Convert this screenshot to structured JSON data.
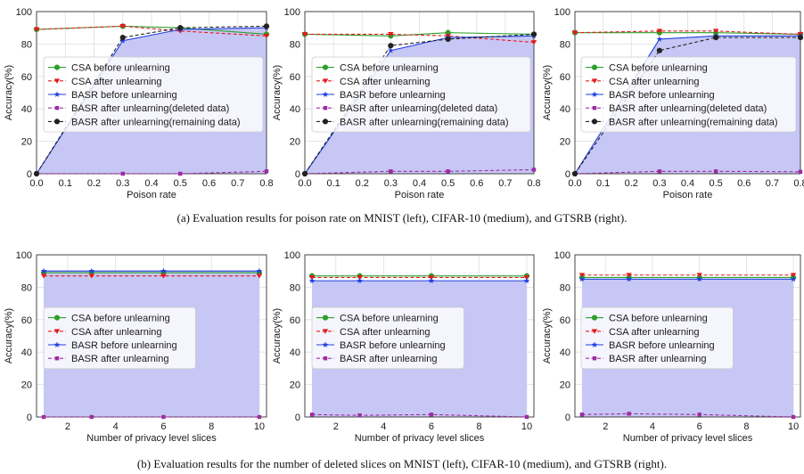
{
  "chart_data": [
    {
      "id": "a1",
      "type": "line",
      "xlabel": "Poison rate",
      "ylabel": "Accuracy(%)",
      "xlim": [
        0.0,
        0.8
      ],
      "ylim": [
        0,
        100
      ],
      "xticks": [
        "0.0",
        "0.1",
        "0.2",
        "0.3",
        "0.4",
        "0.5",
        "0.6",
        "0.7",
        "0.8"
      ],
      "yticks": [
        "0",
        "20",
        "40",
        "60",
        "80",
        "100"
      ],
      "fill_series": "BASR before unlearning",
      "fill_color": "#c7c7f5",
      "legend_position": "center-left",
      "series": [
        {
          "name": "CSA before unlearning",
          "color": "#2ca02c",
          "dash": "solid",
          "marker": "circle",
          "x": [
            0.0,
            0.3,
            0.5,
            0.8
          ],
          "y": [
            89,
            91,
            90,
            86
          ]
        },
        {
          "name": "CSA after unlearning",
          "color": "#e41a1c",
          "dash": "dashed",
          "marker": "triangle-down",
          "x": [
            0.0,
            0.3,
            0.5,
            0.8
          ],
          "y": [
            89,
            91,
            88,
            85
          ]
        },
        {
          "name": "BASR before unlearning",
          "color": "#1f3fe0",
          "dash": "solid",
          "marker": "star",
          "x": [
            0.0,
            0.3,
            0.5,
            0.8
          ],
          "y": [
            0,
            82,
            89,
            90
          ]
        },
        {
          "name": "BASR after unlearning(deleted data)",
          "color": "#9c2ea0",
          "dash": "dashed",
          "marker": "square",
          "x": [
            0.0,
            0.3,
            0.5,
            0.8
          ],
          "y": [
            0,
            0,
            0,
            1.5
          ]
        },
        {
          "name": "BASR after unlearning(remaining data)",
          "color": "#222222",
          "dash": "dashed",
          "marker": "circle",
          "x": [
            0.0,
            0.3,
            0.5,
            0.8
          ],
          "y": [
            0,
            84,
            90,
            91
          ]
        }
      ]
    },
    {
      "id": "a2",
      "type": "line",
      "xlabel": "Poison rate",
      "ylabel": "Accuracy(%)",
      "xlim": [
        0.0,
        0.8
      ],
      "ylim": [
        0,
        100
      ],
      "xticks": [
        "0.0",
        "0.1",
        "0.2",
        "0.3",
        "0.4",
        "0.5",
        "0.6",
        "0.7",
        "0.8"
      ],
      "yticks": [
        "0",
        "20",
        "40",
        "60",
        "80",
        "100"
      ],
      "fill_series": "BASR before unlearning",
      "fill_color": "#c7c7f5",
      "legend_position": "center-left",
      "series": [
        {
          "name": "CSA before unlearning",
          "color": "#2ca02c",
          "dash": "solid",
          "marker": "circle",
          "x": [
            0.0,
            0.3,
            0.5,
            0.8
          ],
          "y": [
            86,
            85,
            87,
            86
          ]
        },
        {
          "name": "CSA after unlearning",
          "color": "#e41a1c",
          "dash": "dashed",
          "marker": "triangle-down",
          "x": [
            0.0,
            0.3,
            0.5,
            0.8
          ],
          "y": [
            86,
            86,
            85,
            81
          ]
        },
        {
          "name": "BASR before unlearning",
          "color": "#1f3fe0",
          "dash": "solid",
          "marker": "star",
          "x": [
            0.0,
            0.3,
            0.5,
            0.8
          ],
          "y": [
            0,
            76,
            84,
            85
          ]
        },
        {
          "name": "BASR after unlearning(deleted data)",
          "color": "#9c2ea0",
          "dash": "dashed",
          "marker": "square",
          "x": [
            0.0,
            0.3,
            0.5,
            0.8
          ],
          "y": [
            0,
            1.5,
            1.5,
            2.5
          ]
        },
        {
          "name": "BASR after unlearning(remaining data)",
          "color": "#222222",
          "dash": "dashed",
          "marker": "circle",
          "x": [
            0.0,
            0.3,
            0.5,
            0.8
          ],
          "y": [
            0,
            79,
            83,
            86
          ]
        }
      ]
    },
    {
      "id": "a3",
      "type": "line",
      "xlabel": "Poison rate",
      "ylabel": "Accuracy(%)",
      "xlim": [
        0.0,
        0.8
      ],
      "ylim": [
        0,
        100
      ],
      "xticks": [
        "0.0",
        "0.1",
        "0.2",
        "0.3",
        "0.4",
        "0.5",
        "0.6",
        "0.7",
        "0.8"
      ],
      "yticks": [
        "0",
        "20",
        "40",
        "60",
        "80",
        "100"
      ],
      "fill_series": "BASR before unlearning",
      "fill_color": "#c7c7f5",
      "legend_position": "center-left",
      "series": [
        {
          "name": "CSA before unlearning",
          "color": "#2ca02c",
          "dash": "solid",
          "marker": "circle",
          "x": [
            0.0,
            0.3,
            0.5,
            0.8
          ],
          "y": [
            87,
            87,
            87,
            86
          ]
        },
        {
          "name": "CSA after unlearning",
          "color": "#e41a1c",
          "dash": "dashed",
          "marker": "triangle-down",
          "x": [
            0.0,
            0.3,
            0.5,
            0.8
          ],
          "y": [
            87,
            88,
            88,
            86
          ]
        },
        {
          "name": "BASR before unlearning",
          "color": "#1f3fe0",
          "dash": "solid",
          "marker": "star",
          "x": [
            0.0,
            0.3,
            0.5,
            0.8
          ],
          "y": [
            0,
            83,
            85,
            85
          ]
        },
        {
          "name": "BASR after unlearning(deleted data)",
          "color": "#9c2ea0",
          "dash": "dashed",
          "marker": "square",
          "x": [
            0.0,
            0.3,
            0.5,
            0.8
          ],
          "y": [
            0,
            1.5,
            1.5,
            1.2
          ]
        },
        {
          "name": "BASR after unlearning(remaining data)",
          "color": "#222222",
          "dash": "dashed",
          "marker": "circle",
          "x": [
            0.0,
            0.3,
            0.5,
            0.8
          ],
          "y": [
            0,
            76,
            84,
            84
          ]
        }
      ]
    },
    {
      "id": "b1",
      "type": "line",
      "xlabel": "Number of privacy level slices",
      "ylabel": "Accuracy(%)",
      "xlim": [
        0.7,
        10.3
      ],
      "ylim": [
        0,
        100
      ],
      "xticks": [
        "2",
        "4",
        "6",
        "8",
        "10"
      ],
      "yticks": [
        "0",
        "20",
        "40",
        "60",
        "80",
        "100"
      ],
      "fill_series": "BASR before unlearning",
      "fill_color": "#c7c7f5",
      "legend_position": "center-left",
      "series": [
        {
          "name": "CSA before unlearning",
          "color": "#2ca02c",
          "dash": "solid",
          "marker": "circle",
          "x": [
            1,
            3,
            6,
            10
          ],
          "y": [
            89,
            89,
            89,
            89
          ]
        },
        {
          "name": "CSA after unlearning",
          "color": "#e41a1c",
          "dash": "dashed",
          "marker": "triangle-down",
          "x": [
            1,
            3,
            6,
            10
          ],
          "y": [
            87,
            87,
            87,
            87
          ]
        },
        {
          "name": "BASR before unlearning",
          "color": "#1f3fe0",
          "dash": "solid",
          "marker": "star",
          "x": [
            1,
            3,
            6,
            10
          ],
          "y": [
            90,
            90,
            90,
            90
          ]
        },
        {
          "name": "BASR after unlearning",
          "color": "#9c2ea0",
          "dash": "dashed",
          "marker": "square",
          "x": [
            1,
            3,
            6,
            10
          ],
          "y": [
            0,
            0,
            0,
            0
          ]
        }
      ]
    },
    {
      "id": "b2",
      "type": "line",
      "xlabel": "Number of privacy level slices",
      "ylabel": "Accuracy(%)",
      "xlim": [
        0.7,
        10.3
      ],
      "ylim": [
        0,
        100
      ],
      "xticks": [
        "2",
        "4",
        "6",
        "8",
        "10"
      ],
      "yticks": [
        "0",
        "20",
        "40",
        "60",
        "80",
        "100"
      ],
      "fill_series": "BASR before unlearning",
      "fill_color": "#c7c7f5",
      "legend_position": "center-left",
      "series": [
        {
          "name": "CSA before unlearning",
          "color": "#2ca02c",
          "dash": "solid",
          "marker": "circle",
          "x": [
            1,
            3,
            6,
            10
          ],
          "y": [
            87,
            87,
            87,
            87
          ]
        },
        {
          "name": "CSA after unlearning",
          "color": "#e41a1c",
          "dash": "dashed",
          "marker": "triangle-down",
          "x": [
            1,
            3,
            6,
            10
          ],
          "y": [
            86,
            86,
            86,
            86
          ]
        },
        {
          "name": "BASR before unlearning",
          "color": "#1f3fe0",
          "dash": "solid",
          "marker": "star",
          "x": [
            1,
            3,
            6,
            10
          ],
          "y": [
            84,
            84,
            84,
            84
          ]
        },
        {
          "name": "BASR after unlearning",
          "color": "#9c2ea0",
          "dash": "dashed",
          "marker": "square",
          "x": [
            1,
            3,
            6,
            10
          ],
          "y": [
            1.5,
            1,
            1.5,
            0
          ]
        }
      ]
    },
    {
      "id": "b3",
      "type": "line",
      "xlabel": "Number of privacy level slices",
      "ylabel": "Accuracy(%)",
      "xlim": [
        0.7,
        10.3
      ],
      "ylim": [
        0,
        100
      ],
      "xticks": [
        "2",
        "4",
        "6",
        "8",
        "10"
      ],
      "yticks": [
        "0",
        "20",
        "40",
        "60",
        "80",
        "100"
      ],
      "fill_series": "BASR before unlearning",
      "fill_color": "#c7c7f5",
      "legend_position": "center-left",
      "series": [
        {
          "name": "CSA before unlearning",
          "color": "#2ca02c",
          "dash": "solid",
          "marker": "circle",
          "x": [
            1,
            3,
            6,
            10
          ],
          "y": [
            86,
            86,
            86,
            86
          ]
        },
        {
          "name": "CSA after unlearning",
          "color": "#e41a1c",
          "dash": "dashed",
          "marker": "triangle-down",
          "x": [
            1,
            3,
            6,
            10
          ],
          "y": [
            87.5,
            87.5,
            87.5,
            87.5
          ]
        },
        {
          "name": "BASR before unlearning",
          "color": "#1f3fe0",
          "dash": "solid",
          "marker": "star",
          "x": [
            1,
            3,
            6,
            10
          ],
          "y": [
            85,
            85,
            85,
            85
          ]
        },
        {
          "name": "BASR after unlearning",
          "color": "#9c2ea0",
          "dash": "dashed",
          "marker": "square",
          "x": [
            1,
            3,
            6,
            10
          ],
          "y": [
            1.5,
            2,
            1.5,
            0
          ]
        }
      ]
    }
  ],
  "captions": {
    "a": "(a)  Evaluation results for poison rate on MNIST (left), CIFAR-10 (medium), and GTSRB (right).",
    "b": "(b)  Evaluation results for the number of deleted slices on MNIST (left), CIFAR-10 (medium), and GTSRB (right)."
  }
}
